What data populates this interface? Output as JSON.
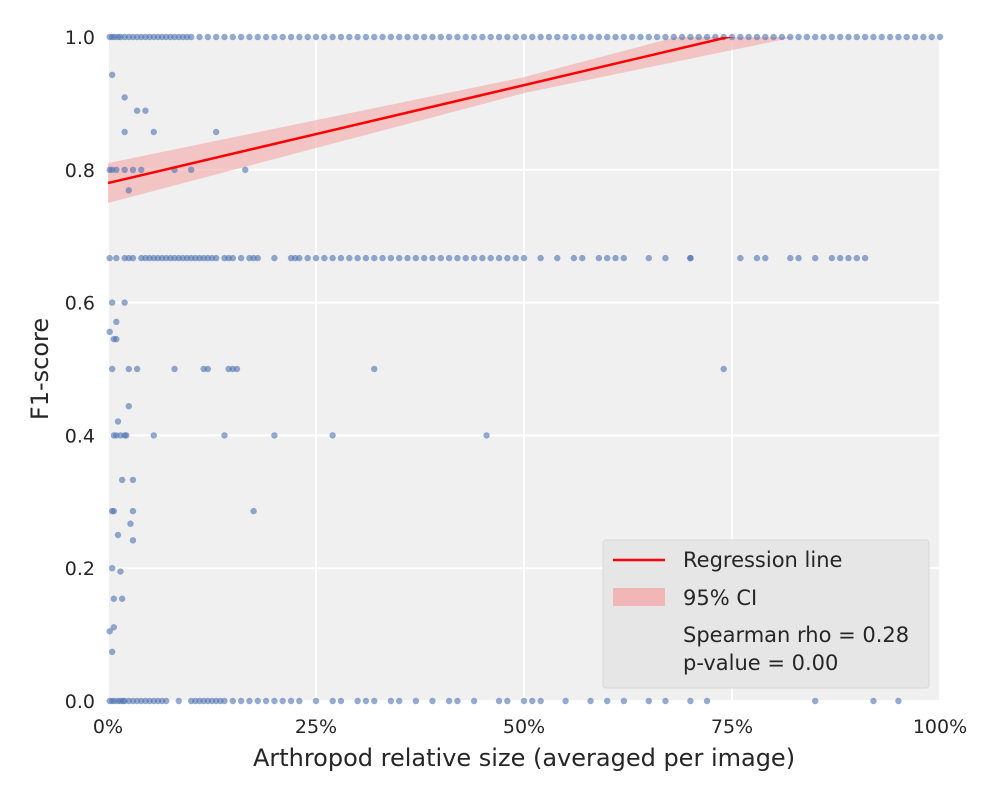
{
  "chart_data": {
    "type": "scatter",
    "title": "",
    "xlabel": "Arthropod relative size (averaged per image)",
    "ylabel": "F1-score",
    "xlim": [
      0,
      1
    ],
    "ylim": [
      0,
      1
    ],
    "x_ticks": [
      0,
      0.25,
      0.5,
      0.75,
      1.0
    ],
    "x_tick_labels": [
      "0%",
      "25%",
      "50%",
      "75%",
      "100%"
    ],
    "y_ticks": [
      0,
      0.2,
      0.4,
      0.6,
      0.8,
      1.0
    ],
    "y_tick_labels": [
      "0.0",
      "0.2",
      "0.4",
      "0.6",
      "0.8",
      "1.0"
    ],
    "grid": true,
    "background": "#f0f0f0",
    "point_color": "#4c72b0",
    "regression_color": "#ff0000",
    "ci_color": "#f4a6a6",
    "regression": {
      "label": "Regression line",
      "intercept": 0.78,
      "slope": 0.295,
      "ci_label": "95% CI",
      "ci_half_width_at_0": 0.03,
      "ci_half_width_mid": 0.012,
      "ci_half_width_at_1": 0.03
    },
    "legend": {
      "location": "bottom-right",
      "regression_label": "Regression line",
      "ci_label": "95% CI",
      "stat_line1": "Spearman rho = 0.28",
      "stat_line2": "p-value = 0.00"
    },
    "points": [
      {
        "y": 1.0,
        "x": [
          0.002,
          0.005,
          0.008,
          0.012,
          0.015,
          0.02,
          0.025,
          0.03,
          0.035,
          0.04,
          0.045,
          0.05,
          0.055,
          0.06,
          0.065,
          0.07,
          0.075,
          0.08,
          0.085,
          0.09,
          0.095,
          0.1,
          0.11,
          0.12,
          0.13,
          0.14,
          0.15,
          0.16,
          0.17,
          0.18,
          0.19,
          0.2,
          0.21,
          0.22,
          0.23,
          0.24,
          0.25,
          0.26,
          0.27,
          0.28,
          0.29,
          0.3,
          0.31,
          0.32,
          0.33,
          0.34,
          0.35,
          0.36,
          0.37,
          0.38,
          0.39,
          0.4,
          0.41,
          0.42,
          0.43,
          0.44,
          0.45,
          0.46,
          0.47,
          0.48,
          0.49,
          0.5,
          0.51,
          0.52,
          0.53,
          0.54,
          0.55,
          0.56,
          0.57,
          0.58,
          0.59,
          0.6,
          0.61,
          0.62,
          0.63,
          0.64,
          0.65,
          0.66,
          0.67,
          0.68,
          0.69,
          0.7,
          0.71,
          0.72,
          0.73,
          0.74,
          0.75,
          0.76,
          0.77,
          0.78,
          0.79,
          0.8,
          0.81,
          0.82,
          0.83,
          0.84,
          0.85,
          0.86,
          0.87,
          0.88,
          0.89,
          0.9,
          0.91,
          0.92,
          0.93,
          0.94,
          0.95,
          0.96,
          0.97,
          0.98,
          0.99,
          1.0
        ]
      },
      {
        "y": 0.943,
        "x": [
          0.005
        ]
      },
      {
        "y": 0.909,
        "x": [
          0.02
        ]
      },
      {
        "y": 0.889,
        "x": [
          0.035,
          0.045
        ]
      },
      {
        "y": 0.857,
        "x": [
          0.02,
          0.055,
          0.13
        ]
      },
      {
        "y": 0.8,
        "x": [
          0.002,
          0.005,
          0.01,
          0.02,
          0.03,
          0.04,
          0.08,
          0.1,
          0.165
        ]
      },
      {
        "y": 0.769,
        "x": [
          0.025
        ]
      },
      {
        "y": 0.667,
        "x": [
          0.002,
          0.01,
          0.02,
          0.025,
          0.03,
          0.04,
          0.045,
          0.05,
          0.055,
          0.06,
          0.065,
          0.07,
          0.075,
          0.08,
          0.085,
          0.09,
          0.095,
          0.1,
          0.105,
          0.11,
          0.115,
          0.12,
          0.125,
          0.13,
          0.14,
          0.145,
          0.15,
          0.16,
          0.17,
          0.175,
          0.18,
          0.2,
          0.22,
          0.225,
          0.23,
          0.24,
          0.25,
          0.26,
          0.27,
          0.28,
          0.29,
          0.3,
          0.31,
          0.32,
          0.33,
          0.34,
          0.35,
          0.36,
          0.37,
          0.38,
          0.39,
          0.4,
          0.41,
          0.42,
          0.43,
          0.44,
          0.45,
          0.46,
          0.47,
          0.48,
          0.49,
          0.5,
          0.52,
          0.54,
          0.56,
          0.57,
          0.59,
          0.6,
          0.61,
          0.62,
          0.65,
          0.67,
          0.7,
          0.7,
          0.76,
          0.78,
          0.79,
          0.82,
          0.83,
          0.85,
          0.87,
          0.88,
          0.89,
          0.9,
          0.91
        ]
      },
      {
        "y": 0.6,
        "x": [
          0.005,
          0.02
        ]
      },
      {
        "y": 0.571,
        "x": [
          0.01
        ]
      },
      {
        "y": 0.556,
        "x": [
          0.002
        ]
      },
      {
        "y": 0.545,
        "x": [
          0.007,
          0.01
        ]
      },
      {
        "y": 0.5,
        "x": [
          0.005,
          0.025,
          0.035,
          0.08,
          0.115,
          0.12,
          0.145,
          0.15,
          0.155,
          0.32,
          0.74
        ]
      },
      {
        "y": 0.444,
        "x": [
          0.025
        ]
      },
      {
        "y": 0.421,
        "x": [
          0.012
        ]
      },
      {
        "y": 0.4,
        "x": [
          0.007,
          0.01,
          0.015,
          0.02,
          0.022,
          0.055,
          0.14,
          0.2,
          0.27,
          0.455
        ]
      },
      {
        "y": 0.333,
        "x": [
          0.017,
          0.03
        ]
      },
      {
        "y": 0.286,
        "x": [
          0.005,
          0.007,
          0.03,
          0.175
        ]
      },
      {
        "y": 0.267,
        "x": [
          0.027
        ]
      },
      {
        "y": 0.25,
        "x": [
          0.012
        ]
      },
      {
        "y": 0.242,
        "x": [
          0.03
        ]
      },
      {
        "y": 0.2,
        "x": [
          0.005
        ]
      },
      {
        "y": 0.195,
        "x": [
          0.015
        ]
      },
      {
        "y": 0.154,
        "x": [
          0.007,
          0.017
        ]
      },
      {
        "y": 0.111,
        "x": [
          0.007
        ]
      },
      {
        "y": 0.105,
        "x": [
          0.002
        ]
      },
      {
        "y": 0.074,
        "x": [
          0.005
        ]
      },
      {
        "y": 0.0,
        "x": [
          0.002,
          0.005,
          0.008,
          0.012,
          0.015,
          0.018,
          0.02,
          0.025,
          0.03,
          0.035,
          0.04,
          0.045,
          0.05,
          0.055,
          0.06,
          0.065,
          0.07,
          0.085,
          0.1,
          0.105,
          0.11,
          0.115,
          0.12,
          0.125,
          0.13,
          0.135,
          0.14,
          0.15,
          0.16,
          0.17,
          0.18,
          0.19,
          0.2,
          0.21,
          0.22,
          0.23,
          0.25,
          0.27,
          0.28,
          0.3,
          0.31,
          0.32,
          0.34,
          0.35,
          0.37,
          0.39,
          0.41,
          0.42,
          0.44,
          0.47,
          0.48,
          0.5,
          0.51,
          0.52,
          0.55,
          0.58,
          0.6,
          0.62,
          0.65,
          0.67,
          0.7,
          0.72,
          0.85,
          0.92,
          0.95
        ]
      }
    ]
  }
}
